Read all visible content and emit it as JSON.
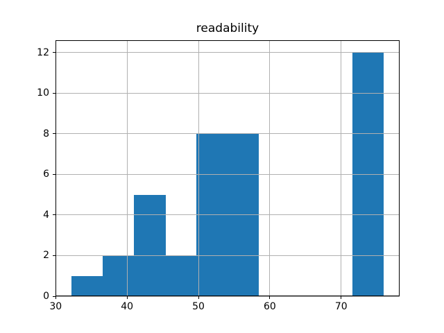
{
  "chart_data": {
    "type": "bar",
    "subtype": "histogram",
    "title": "readability",
    "bin_edges": [
      32.2,
      36.6,
      41.0,
      45.4,
      49.7,
      54.1,
      58.5,
      62.9,
      67.2,
      71.6,
      76.0
    ],
    "counts": [
      1,
      2,
      5,
      2,
      8,
      8,
      0,
      0,
      0,
      12
    ],
    "xticks": [
      30,
      40,
      50,
      60,
      70
    ],
    "yticks": [
      0,
      2,
      4,
      6,
      8,
      10,
      12
    ],
    "xlim": [
      29.97,
      78.19
    ],
    "ylim": [
      0,
      12.6
    ],
    "xlabel": "",
    "ylabel": "",
    "grid": true,
    "legend": false,
    "bar_color": "#1f77b4",
    "grid_color": "#b0b0b0",
    "spine_color": "#000000",
    "tick_color": "#000000",
    "background_color": "#ffffff"
  }
}
